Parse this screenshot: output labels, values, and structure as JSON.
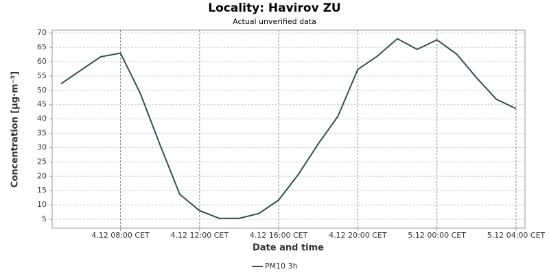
{
  "chart_data": {
    "type": "line",
    "title": "Locality: Havirov ZU",
    "subtitle": "Actual unverified data",
    "x_label": "Date and time",
    "y_label": "Concentration [µg·m⁻³]",
    "categories": [
      null,
      null,
      null,
      "4.12 08:00 CET",
      null,
      null,
      null,
      "4.12 12:00 CET",
      null,
      null,
      null,
      "4.12 16:00 CET",
      null,
      null,
      null,
      "4.12 20:00 CET",
      null,
      null,
      null,
      "5.12 00:00 CET",
      null,
      null,
      null,
      "5.12 04:00 CET"
    ],
    "series": [
      {
        "name": "PM10 3h",
        "color": "#2f4f4f",
        "values": [
          52.3,
          57,
          61.7,
          63,
          49,
          31,
          13.7,
          8,
          5.3,
          5.3,
          7,
          11.7,
          20.7,
          31.3,
          41,
          57.3,
          62,
          68,
          64.3,
          67.6,
          62.6,
          54.4,
          46.9,
          43.6
        ]
      }
    ],
    "ylim": [
      1.9,
      71
    ],
    "yticks": [
      5,
      10,
      15,
      20,
      25,
      30,
      35,
      40,
      45,
      50,
      55,
      60,
      65,
      70
    ],
    "grid": true
  }
}
